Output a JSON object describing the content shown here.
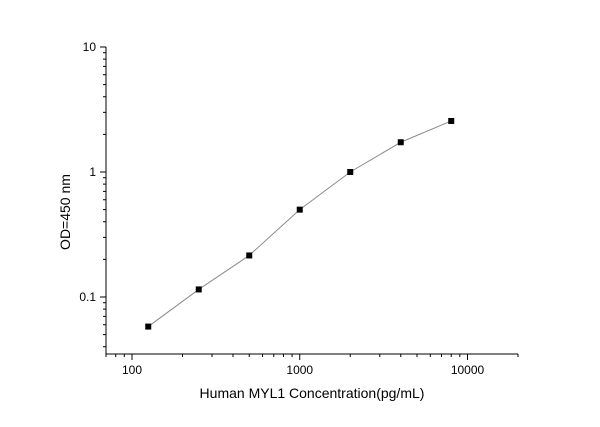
{
  "chart_data": {
    "type": "scatter",
    "title": "",
    "xlabel": "Human MYL1 Concentration(pg/mL)",
    "ylabel": "OD=450 nm",
    "x_scale": "log",
    "y_scale": "log",
    "xlim": [
      70,
      20000
    ],
    "ylim": [
      0.035,
      10
    ],
    "x_ticks": [
      100,
      1000,
      10000
    ],
    "x_tick_labels": [
      "100",
      "1000",
      "10000"
    ],
    "y_ticks": [
      0.1,
      1,
      10
    ],
    "y_tick_labels": [
      "0.1",
      "1",
      "10"
    ],
    "grid": false,
    "legend": "none",
    "series": [
      {
        "x": [
          125,
          250,
          500,
          1000,
          2000,
          4000,
          8000
        ],
        "y": [
          0.058,
          0.115,
          0.215,
          0.5,
          1.0,
          1.73,
          2.56
        ],
        "marker": "square",
        "line_color": "#8a8a8a",
        "marker_color": "#000000"
      }
    ]
  }
}
